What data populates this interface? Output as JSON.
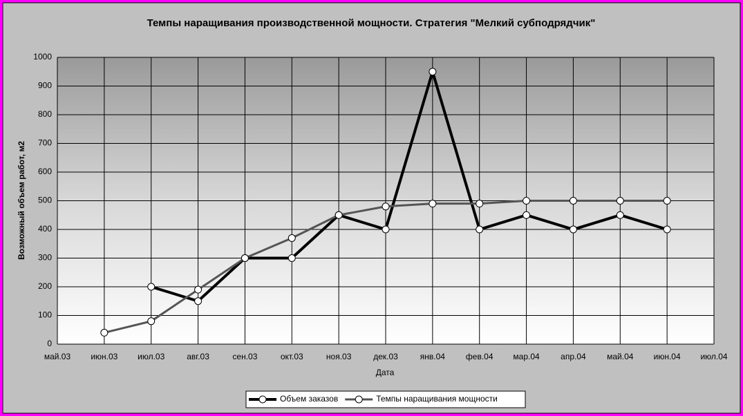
{
  "chart_data": {
    "type": "line",
    "title": "Темпы наращивания производственной мощности. Стратегия \"Мелкий субподрядчик\"",
    "x_label": "Дата",
    "y_label": "Возможный объем работ, м2",
    "categories": [
      "май.03",
      "июн.03",
      "июл.03",
      "авг.03",
      "сен.03",
      "окт.03",
      "ноя.03",
      "дек.03",
      "янв.04",
      "фев.04",
      "мар.04",
      "апр.04",
      "май.04",
      "июн.04",
      "июл.04"
    ],
    "series": [
      {
        "name": "Объем заказов",
        "color": "#000000",
        "values": [
          null,
          null,
          200,
          150,
          300,
          300,
          450,
          400,
          950,
          400,
          450,
          400,
          450,
          400,
          null
        ]
      },
      {
        "name": "Темпы наращивания мощности",
        "color": "#555555",
        "values": [
          null,
          40,
          80,
          190,
          300,
          370,
          450,
          480,
          490,
          490,
          500,
          500,
          500,
          500,
          null
        ]
      }
    ],
    "ylim": [
      0,
      1000
    ],
    "yticks": [
      0,
      100,
      200,
      300,
      400,
      500,
      600,
      700,
      800,
      900,
      1000
    ],
    "grid": true,
    "legend": "bottom"
  }
}
